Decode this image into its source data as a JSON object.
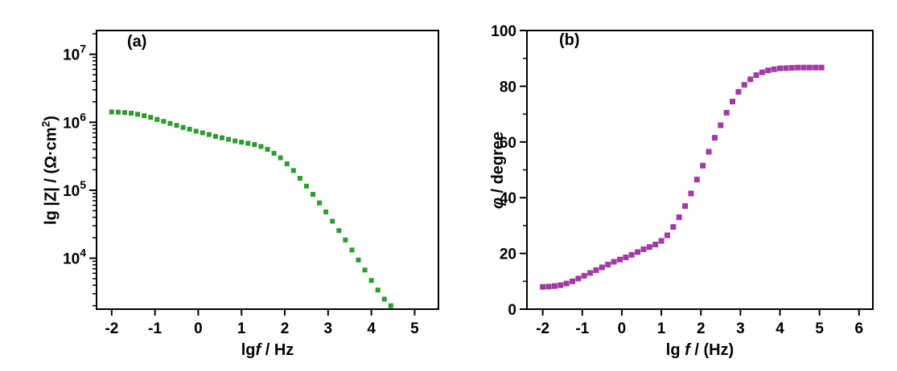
{
  "figure": {
    "background": "#ffffff"
  },
  "chart_data": [
    {
      "type": "scatter",
      "panel_label": "(a)",
      "xlabel": "lgf / Hz",
      "ylabel": "lg |Z| / (Ω·cm²)",
      "xlabel_parts": {
        "pre": "lg",
        "italic": "f",
        "post": " / Hz"
      },
      "ylabel_parts": {
        "pre": "lg |Z| / (Ω·cm",
        "sup": "2",
        "post": ")"
      },
      "marker": {
        "shape": "square",
        "color": "#2e9b2e",
        "size": 6
      },
      "axis_color": "#000000",
      "x_ticks": [
        -2,
        -1,
        0,
        1,
        2,
        3,
        4,
        5
      ],
      "xlim": [
        -2.35,
        5.55
      ],
      "y_scale": "log",
      "y_tick_exponents": [
        4,
        5,
        6,
        7
      ],
      "ylim_log": [
        3.25,
        7.35
      ],
      "grid": false,
      "legend": null,
      "x": [
        -2.0,
        -1.85,
        -1.7,
        -1.55,
        -1.4,
        -1.25,
        -1.1,
        -0.95,
        -0.8,
        -0.65,
        -0.5,
        -0.35,
        -0.2,
        -0.05,
        0.1,
        0.25,
        0.4,
        0.55,
        0.7,
        0.85,
        1.0,
        1.15,
        1.3,
        1.45,
        1.6,
        1.75,
        1.9,
        2.05,
        2.2,
        2.35,
        2.5,
        2.65,
        2.8,
        2.95,
        3.1,
        3.25,
        3.4,
        3.55,
        3.7,
        3.85,
        4.0,
        4.15,
        4.3,
        4.45
      ],
      "y": [
        1420000,
        1410000,
        1390000,
        1360000,
        1310000,
        1250000,
        1180000,
        1100000,
        1030000,
        960000,
        900000,
        840000,
        790000,
        740000,
        700000,
        660000,
        620000,
        590000,
        560000,
        530000,
        510000,
        490000,
        470000,
        440000,
        400000,
        350000,
        300000,
        245000,
        195000,
        150000,
        115000,
        87000,
        65000,
        48000,
        35000,
        25500,
        18500,
        13200,
        9400,
        6700,
        4700,
        3400,
        2500,
        2000
      ]
    },
    {
      "type": "scatter",
      "panel_label": "(b)",
      "xlabel": "lg f / (Hz)",
      "ylabel": "φ / degree",
      "xlabel_parts": {
        "pre": "lg ",
        "italic": "f",
        "post": " / (Hz)"
      },
      "ylabel_parts": {
        "italic": "φ",
        "post": " / degree"
      },
      "marker": {
        "shape": "square",
        "color": "#a23aa5",
        "size": 7
      },
      "axis_color": "#000000",
      "x_ticks": [
        -2,
        -1,
        0,
        1,
        2,
        3,
        4,
        5,
        6
      ],
      "xlim": [
        -2.4,
        6.35
      ],
      "y_scale": "linear",
      "y_ticks": [
        0,
        20,
        40,
        60,
        80,
        100
      ],
      "y_minor_ticks": [
        10,
        30,
        50,
        70,
        90
      ],
      "ylim": [
        0,
        100
      ],
      "grid": false,
      "legend": null,
      "x": [
        -2.0,
        -1.85,
        -1.7,
        -1.55,
        -1.4,
        -1.25,
        -1.1,
        -0.95,
        -0.8,
        -0.65,
        -0.5,
        -0.35,
        -0.2,
        -0.05,
        0.1,
        0.25,
        0.4,
        0.55,
        0.7,
        0.85,
        1.0,
        1.15,
        1.3,
        1.45,
        1.6,
        1.75,
        1.9,
        2.05,
        2.2,
        2.35,
        2.5,
        2.65,
        2.8,
        2.95,
        3.1,
        3.25,
        3.4,
        3.55,
        3.7,
        3.85,
        4.0,
        4.15,
        4.3,
        4.45,
        4.6,
        4.75,
        4.9,
        5.05
      ],
      "y": [
        8.0,
        8.1,
        8.3,
        8.6,
        9.2,
        10.0,
        11.0,
        12.0,
        13.0,
        14.0,
        15.0,
        16.0,
        17.0,
        17.8,
        18.6,
        19.5,
        20.5,
        21.5,
        22.3,
        23.2,
        24.5,
        26.5,
        29.5,
        33.0,
        37.0,
        41.5,
        46.5,
        51.5,
        56.5,
        61.5,
        66.0,
        70.5,
        74.5,
        78.0,
        80.5,
        82.5,
        84.0,
        85.0,
        85.7,
        86.1,
        86.4,
        86.5,
        86.6,
        86.7,
        86.7,
        86.7,
        86.7,
        86.7
      ]
    }
  ]
}
